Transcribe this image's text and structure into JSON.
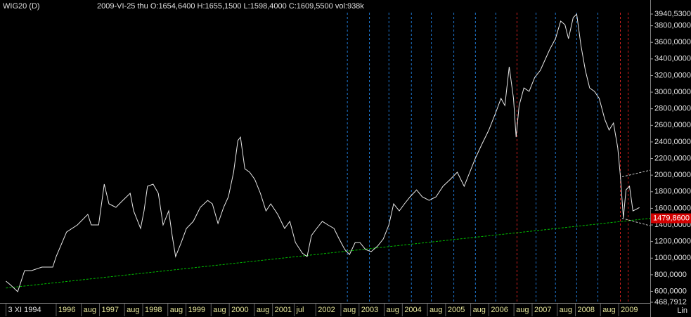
{
  "header": {
    "title": "WIG20 (D)",
    "info": "2009-VI-25  thu    O:1654,6400 H:1655,1500 L:1598,4000 C:1609,5500 vol:938k"
  },
  "chart_data": {
    "type": "line",
    "color": "#e8e8e8",
    "x": [
      1994.84,
      1994.94,
      1995.11,
      1995.27,
      1995.43,
      1995.67,
      1995.92,
      1996.0,
      1996.24,
      1996.49,
      1996.73,
      1996.81,
      1996.98,
      1997.11,
      1997.22,
      1997.38,
      1997.54,
      1997.71,
      1997.79,
      1997.95,
      1998.03,
      1998.11,
      1998.24,
      1998.36,
      1998.47,
      1998.6,
      1998.68,
      1998.76,
      1998.89,
      1999.01,
      1999.17,
      1999.33,
      1999.5,
      1999.61,
      1999.74,
      1999.87,
      1999.98,
      2000.1,
      2000.2,
      2000.26,
      2000.36,
      2000.47,
      2000.59,
      2000.72,
      2000.85,
      2000.96,
      2001.12,
      2001.28,
      2001.4,
      2001.53,
      2001.69,
      2001.8,
      2001.9,
      2002.02,
      2002.15,
      2002.28,
      2002.42,
      2002.54,
      2002.67,
      2002.78,
      2002.91,
      2003.02,
      2003.15,
      2003.28,
      2003.43,
      2003.56,
      2003.69,
      2003.8,
      2003.93,
      2004.05,
      2004.18,
      2004.33,
      2004.46,
      2004.62,
      2004.78,
      2004.94,
      2005.11,
      2005.27,
      2005.43,
      2005.56,
      2005.69,
      2005.84,
      2006.0,
      2006.16,
      2006.28,
      2006.37,
      2006.47,
      2006.57,
      2006.63,
      2006.7,
      2006.81,
      2006.93,
      2007.06,
      2007.19,
      2007.3,
      2007.41,
      2007.54,
      2007.66,
      2007.76,
      2007.84,
      2007.95,
      2008.03,
      2008.13,
      2008.23,
      2008.33,
      2008.44,
      2008.55,
      2008.68,
      2008.78,
      2008.88,
      2008.98,
      2009.04,
      2009.11,
      2009.17,
      2009.25,
      2009.33,
      2009.48
    ],
    "values": [
      723,
      680,
      596,
      850,
      850,
      892,
      892,
      1019,
      1315,
      1400,
      1527,
      1400,
      1400,
      1891,
      1654,
      1612,
      1696,
      1781,
      1569,
      1358,
      1569,
      1866,
      1891,
      1781,
      1400,
      1569,
      1273,
      1019,
      1188,
      1358,
      1443,
      1612,
      1696,
      1654,
      1417,
      1612,
      1739,
      2035,
      2416,
      2458,
      2077,
      2035,
      1950,
      1781,
      1569,
      1654,
      1527,
      1358,
      1443,
      1188,
      1061,
      1019,
      1273,
      1358,
      1443,
      1400,
      1358,
      1231,
      1104,
      1044,
      1188,
      1188,
      1104,
      1078,
      1146,
      1231,
      1400,
      1654,
      1569,
      1654,
      1739,
      1823,
      1739,
      1696,
      1739,
      1866,
      1950,
      2035,
      1866,
      2035,
      2204,
      2374,
      2543,
      2755,
      2924,
      2839,
      3305,
      2924,
      2458,
      2839,
      3051,
      3009,
      3178,
      3263,
      3390,
      3517,
      3644,
      3856,
      3813,
      3644,
      3898,
      3940,
      3559,
      3263,
      3051,
      3009,
      2924,
      2670,
      2543,
      2628,
      2331,
      1993,
      1485,
      1823,
      1866,
      1569,
      1609.55
    ],
    "xlim": [
      1994.75,
      2009.73
    ],
    "ylim": [
      468.7912,
      3940.53
    ],
    "xticks": [
      {
        "value": 1994.84,
        "label": "3 XI 1994"
      },
      1996,
      {
        "value": 1996.58,
        "label": "aug"
      },
      1997,
      {
        "value": 1997.58,
        "label": "aug"
      },
      1998,
      {
        "value": 1998.58,
        "label": "aug"
      },
      1999,
      {
        "value": 1999.58,
        "label": "aug"
      },
      2000,
      {
        "value": 2000.58,
        "label": "aug"
      },
      2001,
      {
        "value": 2001.5,
        "label": "jul"
      },
      2002,
      {
        "value": 2002.58,
        "label": "aug"
      },
      2003,
      {
        "value": 2003.58,
        "label": "aug"
      },
      2004,
      {
        "value": 2004.58,
        "label": "aug"
      },
      2005,
      {
        "value": 2005.58,
        "label": "aug"
      },
      2006,
      {
        "value": 2006.58,
        "label": "aug"
      },
      2007,
      {
        "value": 2007.58,
        "label": "aug"
      },
      2008,
      {
        "value": 2008.58,
        "label": "aug"
      },
      2009
    ],
    "yticks": [
      {
        "value": 3940.53,
        "label": "3940,5300"
      },
      {
        "value": 3800,
        "label": "3800,0000"
      },
      {
        "value": 3600,
        "label": "3600,0000"
      },
      {
        "value": 3400,
        "label": "3400,0000"
      },
      {
        "value": 3200,
        "label": "3200,0000"
      },
      {
        "value": 3000,
        "label": "3000,0000"
      },
      {
        "value": 2800,
        "label": "2800,0000"
      },
      {
        "value": 2600,
        "label": "2600,0000"
      },
      {
        "value": 2400,
        "label": "2400,0000"
      },
      {
        "value": 2200,
        "label": "2200,0000"
      },
      {
        "value": 2000,
        "label": "2000,0000"
      },
      {
        "value": 1800,
        "label": "1800,0000"
      },
      {
        "value": 1600,
        "label": "1600,0000"
      },
      {
        "value": 1400,
        "label": "1400,0000"
      },
      {
        "value": 1200,
        "label": "1200,0000"
      },
      {
        "value": 1000,
        "label": "1000,0000"
      },
      {
        "value": 800,
        "label": "800,0000"
      },
      {
        "value": 600,
        "label": "600,0000"
      },
      {
        "value": 468.7912,
        "label": "468,7912"
      }
    ],
    "scale_label": "Lin",
    "price_marker": {
      "value": 1479.86,
      "label": "1479,8600",
      "color": "#d40000"
    },
    "trendlines": [
      {
        "color": "#00c000",
        "x": [
          1994.84,
          2009.73
        ],
        "values": [
          640,
          1479.86
        ]
      },
      {
        "color": "#c8c8c8",
        "x": [
          2009.08,
          2009.73
        ],
        "values": [
          1980,
          2060
        ]
      },
      {
        "color": "#c8c8c8",
        "x": [
          2009.08,
          2009.73
        ],
        "values": [
          1480,
          1390
        ]
      }
    ],
    "vlines": [
      {
        "x": 2002.73,
        "color": "#1e78d2"
      },
      {
        "x": 2003.24,
        "color": "#1e78d2"
      },
      {
        "x": 2003.69,
        "color": "#1e78d2"
      },
      {
        "x": 2004.21,
        "color": "#1e78d2"
      },
      {
        "x": 2004.67,
        "color": "#1e78d2"
      },
      {
        "x": 2005.19,
        "color": "#1e78d2"
      },
      {
        "x": 2005.69,
        "color": "#1e78d2"
      },
      {
        "x": 2006.16,
        "color": "#1e78d2"
      },
      {
        "x": 2006.65,
        "color": "#d21e1e"
      },
      {
        "x": 2007.09,
        "color": "#1e78d2"
      },
      {
        "x": 2007.54,
        "color": "#1e78d2"
      },
      {
        "x": 2008.03,
        "color": "#1e78d2"
      },
      {
        "x": 2008.52,
        "color": "#1e78d2"
      },
      {
        "x": 2009.04,
        "color": "#d21e1e"
      },
      {
        "x": 2009.22,
        "color": "#d21e1e"
      }
    ]
  }
}
